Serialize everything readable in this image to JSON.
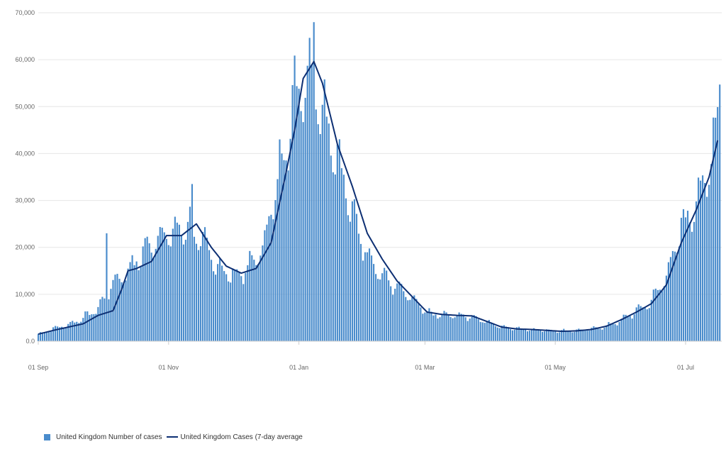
{
  "chart_data": {
    "type": "bar",
    "x_start": "2020-09-01",
    "y_ticks": [
      "0.0",
      "10,000",
      "20,000",
      "30,000",
      "40,000",
      "50,000",
      "60,000",
      "70,000"
    ],
    "y_tick_values": [
      0,
      10000,
      20000,
      30000,
      40000,
      50000,
      60000,
      70000
    ],
    "ylim": [
      0,
      70000
    ],
    "x_ticks": [
      {
        "label": "01 Sep",
        "date": "2020-09-01"
      },
      {
        "label": "01 Nov",
        "date": "2020-11-01"
      },
      {
        "label": "01 Jan",
        "date": "2021-01-01"
      },
      {
        "label": "01 Mar",
        "date": "2021-03-01"
      },
      {
        "label": "01 May",
        "date": "2021-05-01"
      },
      {
        "label": "01 Jul",
        "date": "2021-07-01"
      }
    ],
    "grid": true,
    "legend_position": "bottom-left",
    "series": [
      {
        "name": "United Kingdom Number of cases",
        "type": "bar",
        "color": "#4a8ccc",
        "anchors": [
          [
            "2020-09-01",
            1500
          ],
          [
            "2020-09-08",
            2700
          ],
          [
            "2020-09-15",
            3500
          ],
          [
            "2020-09-22",
            5000
          ],
          [
            "2020-09-29",
            7000
          ],
          [
            "2020-10-06",
            12500
          ],
          [
            "2020-10-13",
            15000
          ],
          [
            "2020-10-20",
            19000
          ],
          [
            "2020-10-27",
            22500
          ],
          [
            "2020-11-03",
            23000
          ],
          [
            "2020-11-10",
            25000
          ],
          [
            "2020-11-17",
            21000
          ],
          [
            "2020-11-24",
            16000
          ],
          [
            "2020-12-01",
            14000
          ],
          [
            "2020-12-08",
            15500
          ],
          [
            "2020-12-15",
            20000
          ],
          [
            "2020-12-22",
            34000
          ],
          [
            "2020-12-29",
            50000
          ],
          [
            "2021-01-05",
            59000
          ],
          [
            "2021-01-12",
            50000
          ],
          [
            "2021-01-19",
            40000
          ],
          [
            "2021-01-26",
            27000
          ],
          [
            "2021-02-02",
            19000
          ],
          [
            "2021-02-09",
            14000
          ],
          [
            "2021-02-16",
            11500
          ],
          [
            "2021-02-23",
            9000
          ],
          [
            "2021-03-02",
            6000
          ],
          [
            "2021-03-09",
            5500
          ],
          [
            "2021-03-16",
            5500
          ],
          [
            "2021-03-23",
            5200
          ],
          [
            "2021-03-30",
            4200
          ],
          [
            "2021-04-06",
            3000
          ],
          [
            "2021-04-13",
            2700
          ],
          [
            "2021-04-20",
            2500
          ],
          [
            "2021-04-27",
            2300
          ],
          [
            "2021-05-04",
            2200
          ],
          [
            "2021-05-11",
            2300
          ],
          [
            "2021-05-18",
            2600
          ],
          [
            "2021-05-25",
            3200
          ],
          [
            "2021-06-01",
            4500
          ],
          [
            "2021-06-08",
            6500
          ],
          [
            "2021-06-15",
            8500
          ],
          [
            "2021-06-22",
            14000
          ],
          [
            "2021-06-29",
            24000
          ],
          [
            "2021-07-06",
            30000
          ],
          [
            "2021-07-13",
            38000
          ],
          [
            "2021-07-16",
            50000
          ]
        ],
        "notable_points": [
          [
            "2020-10-03",
            23000
          ],
          [
            "2020-11-12",
            33500
          ],
          [
            "2021-01-08",
            68000
          ],
          [
            "2021-01-13",
            55800
          ],
          [
            "2021-07-17",
            54700
          ]
        ]
      },
      {
        "name": "United Kingdom Cases (7-day average",
        "type": "line",
        "color": "#0d2f73",
        "values": [
          [
            "2020-09-01",
            1500
          ],
          [
            "2020-09-08",
            2300
          ],
          [
            "2020-09-15",
            3000
          ],
          [
            "2020-09-22",
            3700
          ],
          [
            "2020-09-29",
            5500
          ],
          [
            "2020-10-06",
            6500
          ],
          [
            "2020-10-10",
            11000
          ],
          [
            "2020-10-13",
            15000
          ],
          [
            "2020-10-17",
            15500
          ],
          [
            "2020-10-24",
            17000
          ],
          [
            "2020-10-31",
            22500
          ],
          [
            "2020-11-07",
            22500
          ],
          [
            "2020-11-14",
            25000
          ],
          [
            "2020-11-21",
            20000
          ],
          [
            "2020-11-28",
            16000
          ],
          [
            "2020-12-05",
            14500
          ],
          [
            "2020-12-12",
            15500
          ],
          [
            "2020-12-19",
            21000
          ],
          [
            "2020-12-26",
            36000
          ],
          [
            "2020-12-30",
            45000
          ],
          [
            "2021-01-03",
            56000
          ],
          [
            "2021-01-08",
            59600
          ],
          [
            "2021-01-12",
            55000
          ],
          [
            "2021-01-19",
            42000
          ],
          [
            "2021-01-26",
            33000
          ],
          [
            "2021-02-02",
            23000
          ],
          [
            "2021-02-09",
            17500
          ],
          [
            "2021-02-16",
            12800
          ],
          [
            "2021-02-23",
            9500
          ],
          [
            "2021-03-02",
            6200
          ],
          [
            "2021-03-09",
            5700
          ],
          [
            "2021-03-16",
            5500
          ],
          [
            "2021-03-23",
            5400
          ],
          [
            "2021-03-30",
            4200
          ],
          [
            "2021-04-06",
            3000
          ],
          [
            "2021-04-13",
            2600
          ],
          [
            "2021-04-20",
            2500
          ],
          [
            "2021-04-27",
            2300
          ],
          [
            "2021-05-04",
            2100
          ],
          [
            "2021-05-11",
            2200
          ],
          [
            "2021-05-18",
            2500
          ],
          [
            "2021-05-25",
            3200
          ],
          [
            "2021-06-01",
            4600
          ],
          [
            "2021-06-08",
            6200
          ],
          [
            "2021-06-15",
            8000
          ],
          [
            "2021-06-22",
            12000
          ],
          [
            "2021-06-29",
            21000
          ],
          [
            "2021-07-06",
            28000
          ],
          [
            "2021-07-12",
            35000
          ],
          [
            "2021-07-16",
            42800
          ]
        ]
      }
    ]
  },
  "legend": {
    "bar_label": "United Kingdom Number of cases",
    "line_label": "United Kingdom Cases (7-day average"
  }
}
